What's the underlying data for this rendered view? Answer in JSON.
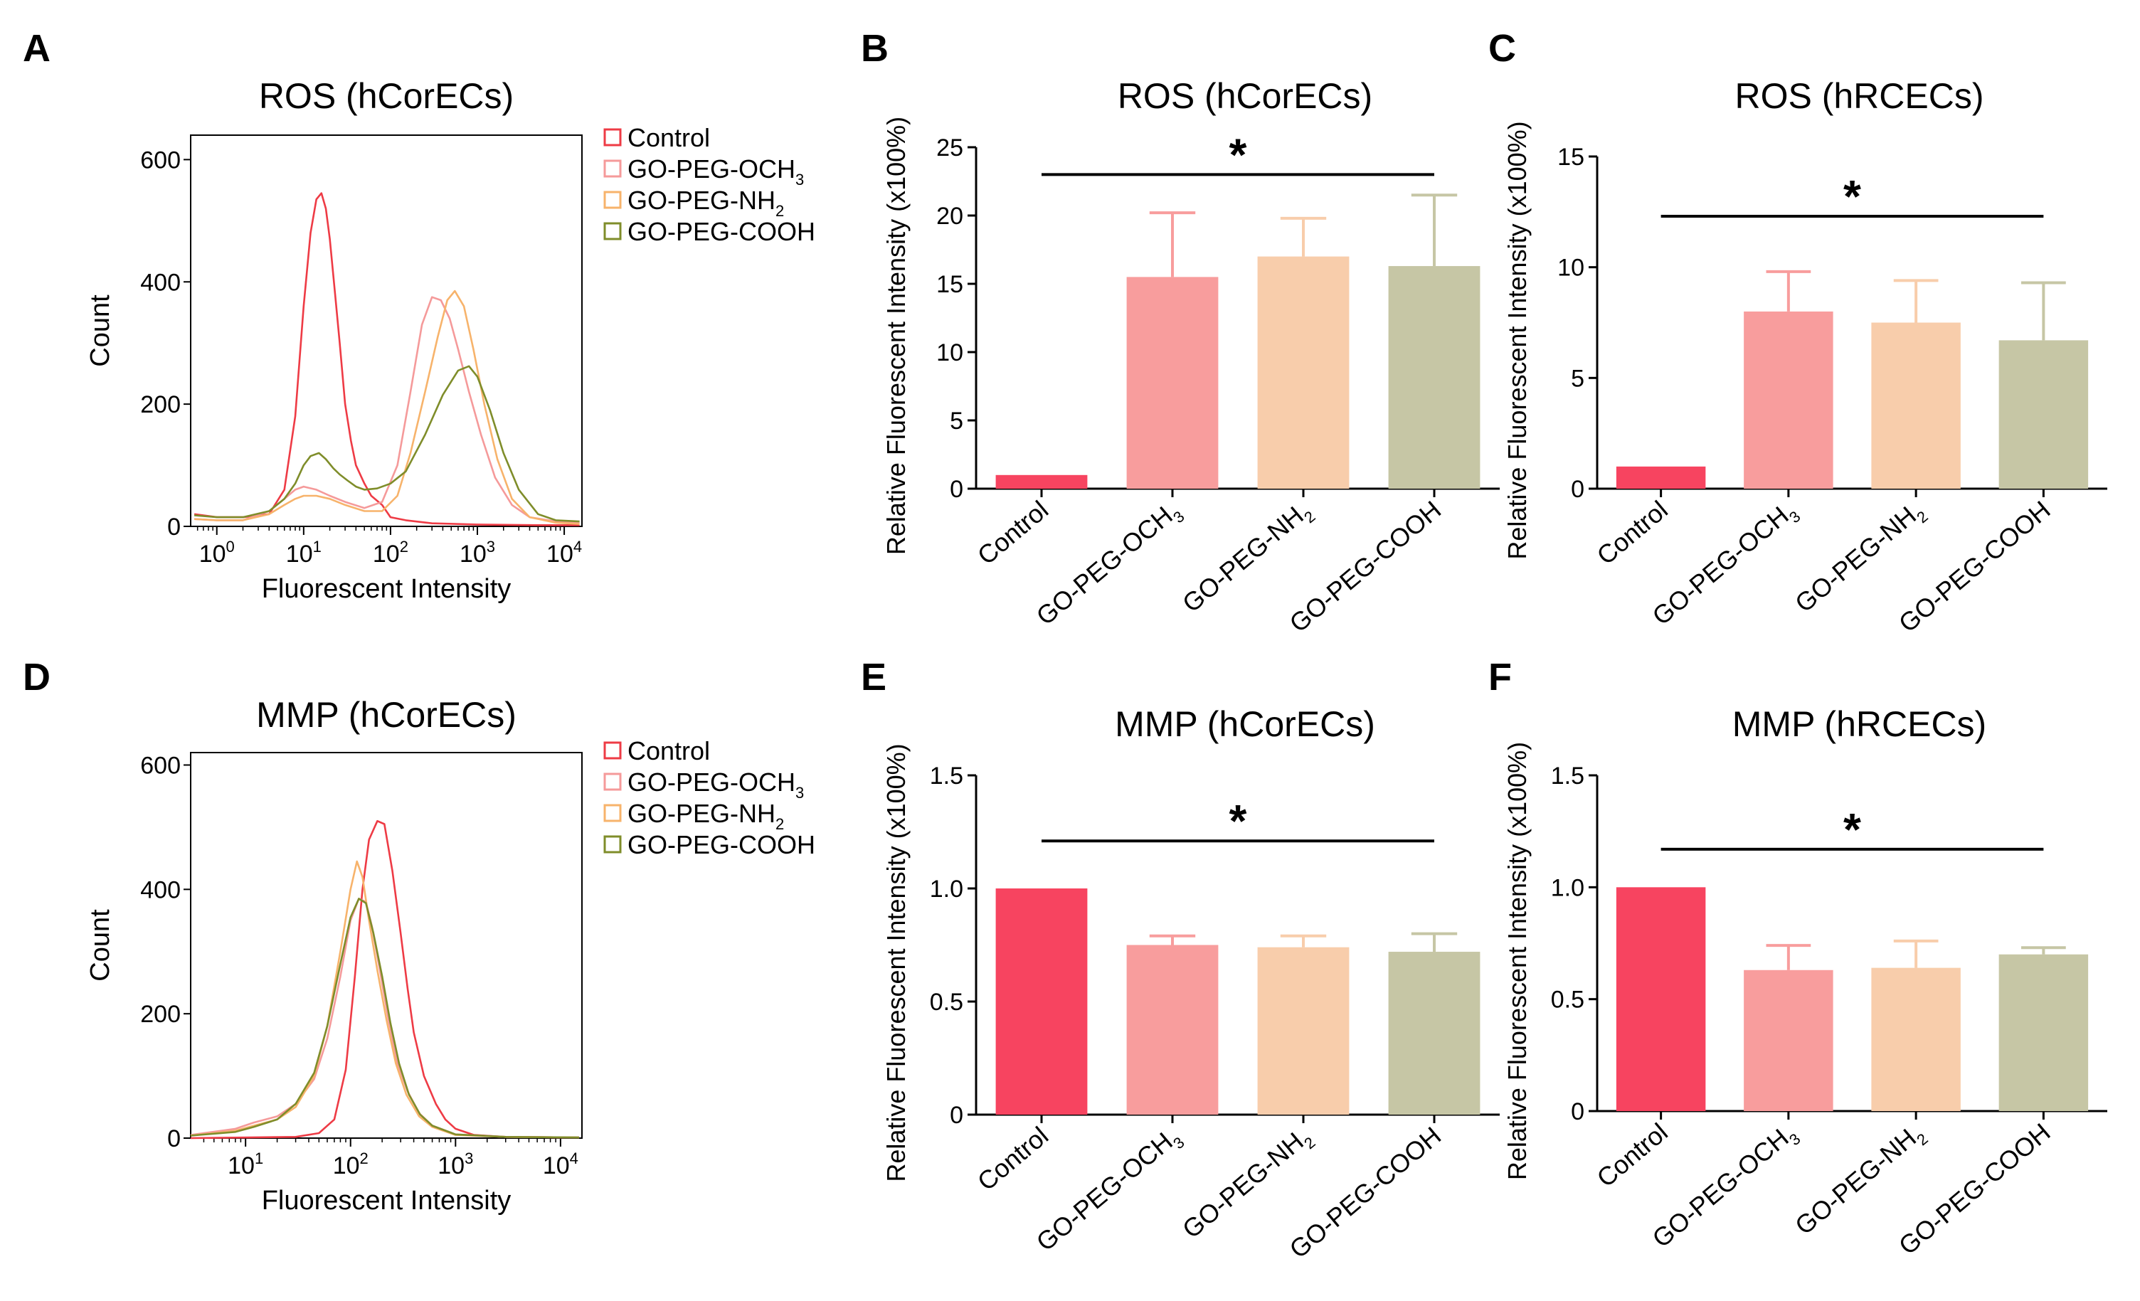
{
  "figure": {
    "panels": [
      {
        "letter": "A"
      },
      {
        "letter": "B"
      },
      {
        "letter": "C"
      },
      {
        "letter": "D"
      },
      {
        "letter": "E"
      },
      {
        "letter": "F"
      }
    ]
  },
  "colors": {
    "control_curve": "#ee3b45",
    "och3_curve": "#f59a9a",
    "nh2_curve": "#f7b36b",
    "cooh_curve": "#7f8d2a",
    "control_bar": "#f74460",
    "och3_bar": "#f89d9d",
    "nh2_bar": "#f8cdab",
    "cooh_bar": "#c6c6a5"
  },
  "chart_data": [
    {
      "panel": "A",
      "type": "line",
      "title": "ROS (hCorECs)",
      "xlabel": "Fluorescent Intensity",
      "ylabel": "Count",
      "xscale": "log",
      "xlim": [
        0.5,
        16000
      ],
      "ylim": [
        0,
        640
      ],
      "xticks": [
        {
          "value": 1,
          "base": "10",
          "exp": "0"
        },
        {
          "value": 10,
          "base": "10",
          "exp": "1"
        },
        {
          "value": 100,
          "base": "10",
          "exp": "2"
        },
        {
          "value": 1000,
          "base": "10",
          "exp": "3"
        },
        {
          "value": 10000,
          "base": "10",
          "exp": "4"
        }
      ],
      "yticks": [
        "0",
        "200",
        "400",
        "600"
      ],
      "legend_position": "right",
      "series": [
        {
          "name": "Control",
          "label": "Control",
          "sub": "",
          "color_key": "control_curve",
          "x": [
            0.55,
            1,
            2,
            4,
            6,
            8,
            10,
            12,
            14,
            16,
            18,
            20,
            23,
            26,
            30,
            35,
            40,
            50,
            60,
            80,
            100,
            150,
            300,
            1000,
            5000,
            15000
          ],
          "y": [
            20,
            15,
            15,
            20,
            60,
            180,
            360,
            480,
            535,
            545,
            520,
            470,
            380,
            300,
            200,
            140,
            100,
            70,
            50,
            35,
            15,
            10,
            5,
            3,
            2,
            2
          ]
        },
        {
          "name": "GO-PEG-OCH3",
          "label": "GO-PEG-OCH",
          "sub": "3",
          "color_key": "och3_curve",
          "x": [
            0.55,
            1,
            2,
            4,
            6,
            8,
            10,
            14,
            20,
            30,
            50,
            80,
            120,
            170,
            230,
            300,
            380,
            480,
            600,
            800,
            1100,
            1600,
            2500,
            4000,
            8000,
            15000
          ],
          "y": [
            12,
            10,
            10,
            25,
            45,
            60,
            65,
            60,
            50,
            40,
            30,
            40,
            100,
            220,
            330,
            375,
            370,
            340,
            290,
            220,
            150,
            80,
            35,
            15,
            8,
            5
          ]
        },
        {
          "name": "GO-PEG-NH2",
          "label": "GO-PEG-NH",
          "sub": "2",
          "color_key": "nh2_curve",
          "x": [
            0.55,
            1,
            2,
            4,
            6,
            8,
            10,
            14,
            20,
            30,
            50,
            80,
            120,
            170,
            250,
            350,
            450,
            550,
            700,
            900,
            1200,
            1700,
            2500,
            4000,
            8000,
            15000
          ],
          "y": [
            12,
            10,
            10,
            20,
            35,
            45,
            50,
            50,
            45,
            35,
            25,
            25,
            50,
            120,
            220,
            310,
            370,
            385,
            360,
            290,
            200,
            110,
            45,
            15,
            6,
            4
          ]
        },
        {
          "name": "GO-PEG-COOH",
          "label": "GO-PEG-COOH",
          "sub": "",
          "color_key": "cooh_curve",
          "x": [
            0.55,
            1,
            2,
            4,
            6,
            8,
            10,
            12,
            15,
            18,
            22,
            26,
            32,
            40,
            50,
            70,
            100,
            150,
            250,
            400,
            600,
            800,
            1000,
            1400,
            2000,
            3000,
            5000,
            8000,
            15000
          ],
          "y": [
            18,
            15,
            15,
            25,
            45,
            70,
            100,
            115,
            120,
            110,
            95,
            85,
            75,
            65,
            60,
            62,
            70,
            90,
            150,
            215,
            255,
            262,
            245,
            190,
            120,
            60,
            20,
            10,
            8
          ]
        }
      ]
    },
    {
      "panel": "B",
      "type": "bar",
      "title": "ROS (hCorECs)",
      "ylabel": "Relative Fluorescent Intensity (x100%)",
      "ylim": [
        0,
        25
      ],
      "yticks": [
        "0",
        "5",
        "10",
        "15",
        "20",
        "25"
      ],
      "categories": [
        {
          "label": "Control",
          "sub": ""
        },
        {
          "label": "GO-PEG-OCH",
          "sub": "3"
        },
        {
          "label": "GO-PEG-NH",
          "sub": "2"
        },
        {
          "label": "GO-PEG-COOH",
          "sub": ""
        }
      ],
      "values": [
        1.0,
        15.5,
        17.0,
        16.3
      ],
      "errors": [
        0,
        4.7,
        2.8,
        5.2
      ],
      "bar_color_keys": [
        "control_bar",
        "och3_bar",
        "nh2_bar",
        "cooh_bar"
      ],
      "significance": {
        "label": "*",
        "y": 23
      }
    },
    {
      "panel": "C",
      "type": "bar",
      "title": "ROS (hRCECs)",
      "ylabel": "Relative Fluorescent Intensity (x100%)",
      "ylim": [
        0,
        15
      ],
      "yticks": [
        "0",
        "5",
        "10",
        "15"
      ],
      "categories": [
        {
          "label": "Control",
          "sub": ""
        },
        {
          "label": "GO-PEG-OCH",
          "sub": "3"
        },
        {
          "label": "GO-PEG-NH",
          "sub": "2"
        },
        {
          "label": "GO-PEG-COOH",
          "sub": ""
        }
      ],
      "values": [
        1.0,
        8.0,
        7.5,
        6.7
      ],
      "errors": [
        0,
        1.8,
        1.9,
        2.6
      ],
      "bar_color_keys": [
        "control_bar",
        "och3_bar",
        "nh2_bar",
        "cooh_bar"
      ],
      "significance": {
        "label": "*",
        "y": 12.3
      }
    },
    {
      "panel": "D",
      "type": "line",
      "title": "MMP (hCorECs)",
      "xlabel": "Fluorescent Intensity",
      "ylabel": "Count",
      "xscale": "log",
      "xlim": [
        3,
        16000
      ],
      "ylim": [
        0,
        620
      ],
      "xticks": [
        {
          "value": 10,
          "base": "10",
          "exp": "1"
        },
        {
          "value": 100,
          "base": "10",
          "exp": "2"
        },
        {
          "value": 1000,
          "base": "10",
          "exp": "3"
        },
        {
          "value": 10000,
          "base": "10",
          "exp": "4"
        }
      ],
      "yticks": [
        "0",
        "200",
        "400",
        "600"
      ],
      "legend_position": "right",
      "series": [
        {
          "name": "Control",
          "label": "Control",
          "sub": "",
          "color_key": "control_curve",
          "x": [
            3,
            30,
            50,
            70,
            90,
            110,
            130,
            150,
            180,
            210,
            250,
            300,
            350,
            400,
            500,
            650,
            800,
            1000,
            1500,
            3000,
            15000
          ],
          "y": [
            0,
            2,
            8,
            30,
            110,
            260,
            400,
            480,
            510,
            505,
            430,
            330,
            240,
            170,
            100,
            55,
            30,
            15,
            5,
            2,
            1
          ]
        },
        {
          "name": "GO-PEG-OCH3",
          "label": "GO-PEG-OCH",
          "sub": "3",
          "color_key": "och3_curve",
          "x": [
            3,
            8,
            12,
            20,
            30,
            45,
            60,
            80,
            100,
            120,
            140,
            160,
            190,
            230,
            280,
            350,
            450,
            600,
            1000,
            3000,
            15000
          ],
          "y": [
            5,
            15,
            25,
            35,
            55,
            95,
            160,
            260,
            350,
            385,
            380,
            340,
            270,
            190,
            120,
            75,
            40,
            20,
            6,
            2,
            1
          ]
        },
        {
          "name": "GO-PEG-NH2",
          "label": "GO-PEG-NH",
          "sub": "2",
          "color_key": "nh2_curve",
          "x": [
            3,
            8,
            12,
            20,
            30,
            45,
            60,
            80,
            100,
            115,
            130,
            150,
            180,
            220,
            270,
            340,
            450,
            600,
            1000,
            3000,
            15000
          ],
          "y": [
            4,
            12,
            20,
            30,
            50,
            100,
            180,
            300,
            400,
            445,
            420,
            350,
            270,
            190,
            120,
            70,
            35,
            18,
            5,
            2,
            1
          ]
        },
        {
          "name": "GO-PEG-COOH",
          "label": "GO-PEG-COOH",
          "sub": "",
          "color_key": "cooh_curve",
          "x": [
            3,
            8,
            12,
            20,
            30,
            45,
            60,
            80,
            100,
            120,
            140,
            165,
            200,
            240,
            290,
            360,
            460,
            600,
            1000,
            3000,
            15000
          ],
          "y": [
            4,
            10,
            18,
            30,
            55,
            105,
            180,
            280,
            355,
            385,
            378,
            330,
            260,
            185,
            120,
            70,
            38,
            20,
            6,
            2,
            1
          ]
        }
      ]
    },
    {
      "panel": "E",
      "type": "bar",
      "title": "MMP (hCorECs)",
      "ylabel": "Relative Fluorescent Intensity (x100%)",
      "ylim": [
        0,
        1.5
      ],
      "yticks": [
        "0",
        "0.5",
        "1.0",
        "1.5"
      ],
      "categories": [
        {
          "label": "Control",
          "sub": ""
        },
        {
          "label": "GO-PEG-OCH",
          "sub": "3"
        },
        {
          "label": "GO-PEG-NH",
          "sub": "2"
        },
        {
          "label": "GO-PEG-COOH",
          "sub": ""
        }
      ],
      "values": [
        1.0,
        0.75,
        0.74,
        0.72
      ],
      "errors": [
        0,
        0.04,
        0.05,
        0.08
      ],
      "bar_color_keys": [
        "control_bar",
        "och3_bar",
        "nh2_bar",
        "cooh_bar"
      ],
      "significance": {
        "label": "*",
        "y": 1.21
      }
    },
    {
      "panel": "F",
      "type": "bar",
      "title": "MMP (hRCECs)",
      "ylabel": "Relative Fluorescent Intensity (x100%)",
      "ylim": [
        0,
        1.5
      ],
      "yticks": [
        "0",
        "0.5",
        "1.0",
        "1.5"
      ],
      "categories": [
        {
          "label": "Control",
          "sub": ""
        },
        {
          "label": "GO-PEG-OCH",
          "sub": "3"
        },
        {
          "label": "GO-PEG-NH",
          "sub": "2"
        },
        {
          "label": "GO-PEG-COOH",
          "sub": ""
        }
      ],
      "values": [
        1.0,
        0.63,
        0.64,
        0.7
      ],
      "errors": [
        0,
        0.11,
        0.12,
        0.03
      ],
      "bar_color_keys": [
        "control_bar",
        "och3_bar",
        "nh2_bar",
        "cooh_bar"
      ],
      "significance": {
        "label": "*",
        "y": 1.17
      }
    }
  ]
}
